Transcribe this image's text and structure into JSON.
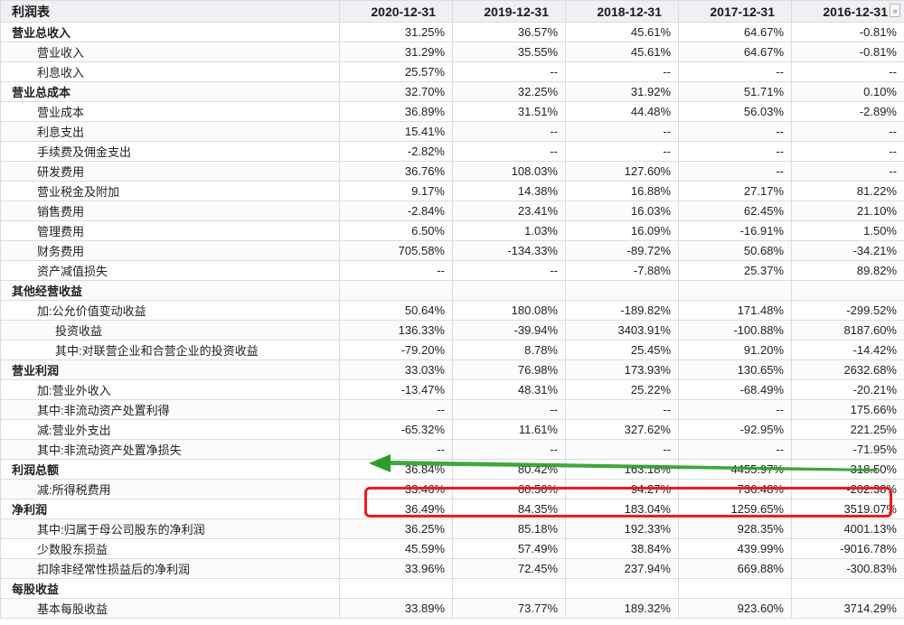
{
  "table": {
    "header_label": "利润表",
    "dates": [
      "2020-12-31",
      "2019-12-31",
      "2018-12-31",
      "2017-12-31",
      "2016-12-31"
    ],
    "nav_icon": "»",
    "rows": [
      {
        "label": "营业总收入",
        "level": 0,
        "values": [
          "31.25%",
          "36.57%",
          "45.61%",
          "64.67%",
          "-0.81%"
        ]
      },
      {
        "label": "营业收入",
        "level": 1,
        "values": [
          "31.29%",
          "35.55%",
          "45.61%",
          "64.67%",
          "-0.81%"
        ]
      },
      {
        "label": "利息收入",
        "level": 1,
        "values": [
          "25.57%",
          "--",
          "--",
          "--",
          "--"
        ]
      },
      {
        "label": "营业总成本",
        "level": 0,
        "values": [
          "32.70%",
          "32.25%",
          "31.92%",
          "51.71%",
          "0.10%"
        ]
      },
      {
        "label": "营业成本",
        "level": 1,
        "values": [
          "36.89%",
          "31.51%",
          "44.48%",
          "56.03%",
          "-2.89%"
        ]
      },
      {
        "label": "利息支出",
        "level": 1,
        "values": [
          "15.41%",
          "--",
          "--",
          "--",
          "--"
        ]
      },
      {
        "label": "手续费及佣金支出",
        "level": 1,
        "values": [
          "-2.82%",
          "--",
          "--",
          "--",
          "--"
        ]
      },
      {
        "label": "研发费用",
        "level": 1,
        "values": [
          "36.76%",
          "108.03%",
          "127.60%",
          "--",
          "--"
        ]
      },
      {
        "label": "营业税金及附加",
        "level": 1,
        "values": [
          "9.17%",
          "14.38%",
          "16.88%",
          "27.17%",
          "81.22%"
        ]
      },
      {
        "label": "销售费用",
        "level": 1,
        "values": [
          "-2.84%",
          "23.41%",
          "16.03%",
          "62.45%",
          "21.10%"
        ]
      },
      {
        "label": "管理费用",
        "level": 1,
        "values": [
          "6.50%",
          "1.03%",
          "16.09%",
          "-16.91%",
          "1.50%"
        ]
      },
      {
        "label": "财务费用",
        "level": 1,
        "values": [
          "705.58%",
          "-134.33%",
          "-89.72%",
          "50.68%",
          "-34.21%"
        ]
      },
      {
        "label": "资产减值损失",
        "level": 1,
        "values": [
          "--",
          "--",
          "-7.88%",
          "25.37%",
          "89.82%"
        ]
      },
      {
        "label": "其他经营收益",
        "level": 0,
        "values": [
          "",
          "",
          "",
          "",
          ""
        ]
      },
      {
        "label": "加:公允价值变动收益",
        "level": 1,
        "values": [
          "50.64%",
          "180.08%",
          "-189.82%",
          "171.48%",
          "-299.52%"
        ]
      },
      {
        "label": "投资收益",
        "level": 2,
        "values": [
          "136.33%",
          "-39.94%",
          "3403.91%",
          "-100.88%",
          "8187.60%"
        ]
      },
      {
        "label": "其中:对联营企业和合营企业的投资收益",
        "level": 2,
        "values": [
          "-79.20%",
          "8.78%",
          "25.45%",
          "91.20%",
          "-14.42%"
        ]
      },
      {
        "label": "营业利润",
        "level": 0,
        "values": [
          "33.03%",
          "76.98%",
          "173.93%",
          "130.65%",
          "2632.68%"
        ]
      },
      {
        "label": "加:营业外收入",
        "level": 1,
        "values": [
          "-13.47%",
          "48.31%",
          "25.22%",
          "-68.49%",
          "-20.21%"
        ]
      },
      {
        "label": "其中:非流动资产处置利得",
        "level": 1,
        "values": [
          "--",
          "--",
          "--",
          "--",
          "175.66%"
        ]
      },
      {
        "label": "减:营业外支出",
        "level": 1,
        "values": [
          "-65.32%",
          "11.61%",
          "327.62%",
          "-92.95%",
          "221.25%"
        ]
      },
      {
        "label": "其中:非流动资产处置净损失",
        "level": 1,
        "values": [
          "--",
          "--",
          "--",
          "--",
          "-71.95%"
        ]
      },
      {
        "label": "利润总额",
        "level": 0,
        "values": [
          "36.84%",
          "80.42%",
          "163.18%",
          "4455.97%",
          "318.50%"
        ]
      },
      {
        "label": "减:所得税费用",
        "level": 1,
        "values": [
          "33.46%",
          "60.50%",
          "94.27%",
          "736.48%",
          "-202.38%"
        ]
      },
      {
        "label": "净利润",
        "level": 0,
        "values": [
          "36.49%",
          "84.35%",
          "183.04%",
          "1259.65%",
          "3519.07%"
        ]
      },
      {
        "label": "其中:归属于母公司股东的净利润",
        "level": 1,
        "values": [
          "36.25%",
          "85.18%",
          "192.33%",
          "928.35%",
          "4001.13%"
        ]
      },
      {
        "label": "少数股东损益",
        "level": 1,
        "values": [
          "45.59%",
          "57.49%",
          "38.84%",
          "439.99%",
          "-9016.78%"
        ]
      },
      {
        "label": "扣除非经常性损益后的净利润",
        "level": 1,
        "values": [
          "33.96%",
          "72.45%",
          "237.94%",
          "669.88%",
          "-300.83%"
        ]
      },
      {
        "label": "每股收益",
        "level": 0,
        "values": [
          "",
          "",
          "",
          "",
          ""
        ]
      },
      {
        "label": "基本每股收益",
        "level": 1,
        "values": [
          "33.89%",
          "73.77%",
          "189.32%",
          "923.60%",
          "3714.29%"
        ]
      }
    ]
  },
  "annotations": {
    "highlight_color": "#ee1c1c",
    "arrow_color": "#2a9d2a"
  }
}
